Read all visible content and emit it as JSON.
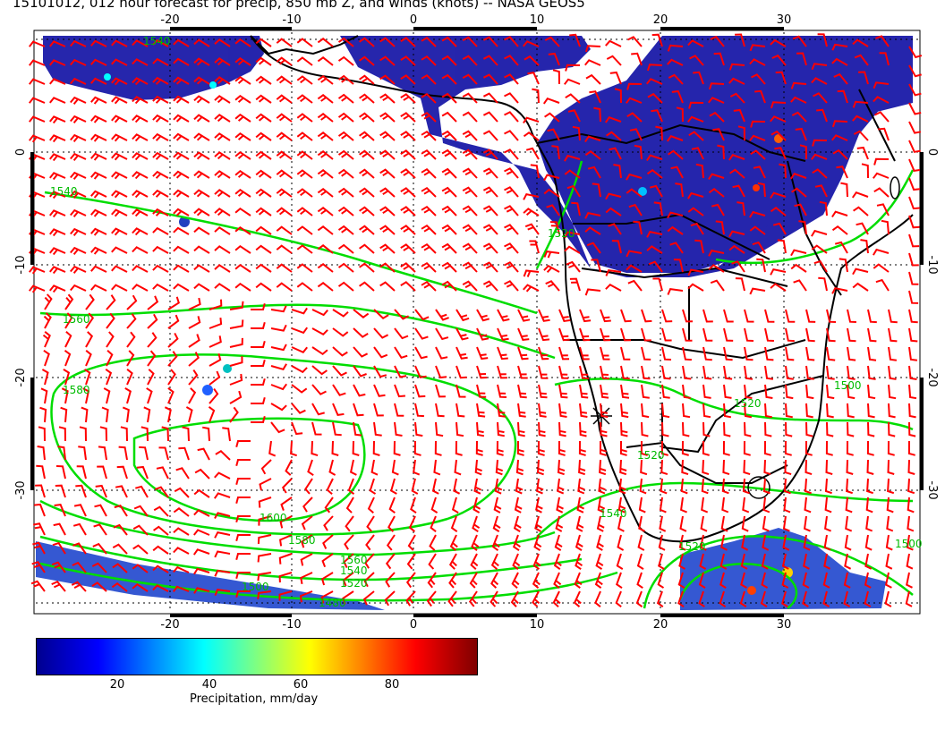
{
  "title": "15101012, 012 hour forecast for precip, 850 mb Z, and winds (knots) -- NASA GEOS5",
  "map": {
    "lon_ticks": [
      "-20",
      "-10",
      "0",
      "10",
      "20",
      "30"
    ],
    "lat_ticks": [
      "0",
      "-10",
      "-20",
      "-30"
    ],
    "contour_labels": [
      "1540",
      "1540",
      "1560",
      "1580",
      "1600",
      "1580",
      "1560",
      "1540",
      "1520",
      "1500",
      "1480",
      "1540",
      "1520",
      "1520",
      "1520",
      "1500",
      "1520",
      "1500"
    ]
  },
  "colorbar": {
    "ticks": [
      "20",
      "40",
      "60",
      "80"
    ],
    "label": "Precipitation, mm/day",
    "colors": [
      "#00008f",
      "#0000ff",
      "#0080ff",
      "#00ffff",
      "#80ff80",
      "#ffff00",
      "#ff8000",
      "#ff0000",
      "#800000"
    ]
  },
  "colors": {
    "wind": "#ff0000",
    "contour": "#00dd00",
    "coast": "#000000",
    "precip": "#1a1aa8"
  }
}
